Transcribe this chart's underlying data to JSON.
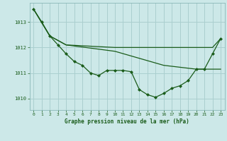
{
  "background_color": "#cce8e8",
  "grid_color": "#aacfcf",
  "line_color": "#1a5c1a",
  "marker_color": "#1a5c1a",
  "title": "Graphe pression niveau de la mer (hPa)",
  "title_color": "#1a5c1a",
  "xlim": [
    -0.5,
    23.5
  ],
  "ylim": [
    1009.55,
    1013.75
  ],
  "yticks": [
    1010,
    1011,
    1012,
    1013
  ],
  "xticks": [
    0,
    1,
    2,
    3,
    4,
    5,
    6,
    7,
    8,
    9,
    10,
    11,
    12,
    13,
    14,
    15,
    16,
    17,
    18,
    19,
    20,
    21,
    22,
    23
  ],
  "line1_x": [
    0,
    1,
    2,
    3,
    4,
    5,
    6,
    7,
    8,
    9,
    10,
    11,
    12,
    13,
    14,
    15,
    16,
    17,
    18,
    19,
    20,
    21,
    22,
    23
  ],
  "line1_y": [
    1013.5,
    1013.0,
    1012.45,
    1012.1,
    1011.75,
    1011.45,
    1011.3,
    1011.0,
    1010.9,
    1011.1,
    1011.1,
    1011.1,
    1011.05,
    1010.35,
    1010.15,
    1010.05,
    1010.2,
    1010.4,
    1010.5,
    1010.7,
    1011.15,
    1011.15,
    1011.75,
    1012.35
  ],
  "line2_x": [
    0,
    2,
    4,
    10,
    15,
    17,
    19,
    22,
    23
  ],
  "line2_y": [
    1013.5,
    1012.45,
    1012.1,
    1012.0,
    1012.0,
    1012.0,
    1012.0,
    1012.0,
    1012.35
  ],
  "line3_x": [
    0,
    2,
    4,
    10,
    16,
    20,
    22,
    23
  ],
  "line3_y": [
    1013.5,
    1012.45,
    1012.1,
    1011.85,
    1011.3,
    1011.15,
    1011.15,
    1011.15
  ]
}
